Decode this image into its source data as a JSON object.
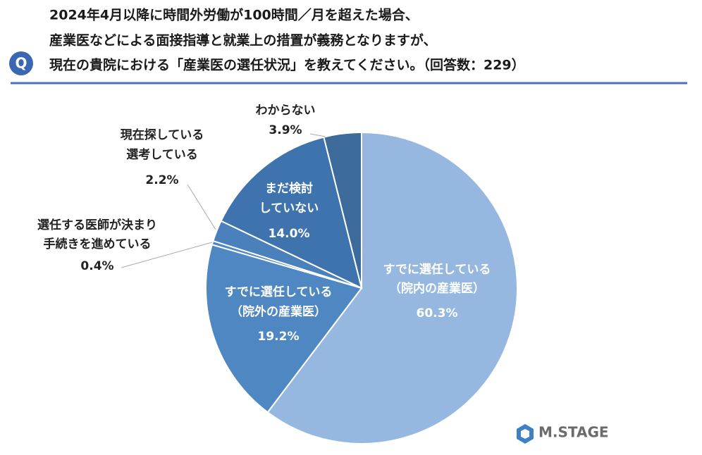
{
  "chart_data": {
    "type": "pie",
    "badge": "Q",
    "title": [
      "2024年4月以降に時間外労働が100時間／月を超えた場合、",
      "産業医などによる面接指導と就業上の措置が義務となりますが、",
      "現在の貴院における「産業医の選任状況」を教えてください。（回答数：229）"
    ],
    "categories": [
      [
        "すでに選任している",
        "（院内の産業医）"
      ],
      [
        "すでに選任している",
        "（院外の産業医）"
      ],
      [
        "選任する医師が決まり",
        "手続きを進めている"
      ],
      [
        "現在探している",
        "選考している"
      ],
      [
        "まだ検討",
        "していない"
      ],
      [
        "わからない"
      ]
    ],
    "values": [
      60.3,
      19.2,
      0.4,
      2.2,
      14.0,
      3.9
    ],
    "value_labels": [
      "60.3%",
      "19.2%",
      "0.4%",
      "2.2%",
      "14.0%",
      "3.9%"
    ],
    "colors": [
      "#96b8e0",
      "#4f87c2",
      "#4f87c2",
      "#4a80bb",
      "#3f73ad",
      "#3c6b9c"
    ],
    "logo": "M.STAGE"
  }
}
